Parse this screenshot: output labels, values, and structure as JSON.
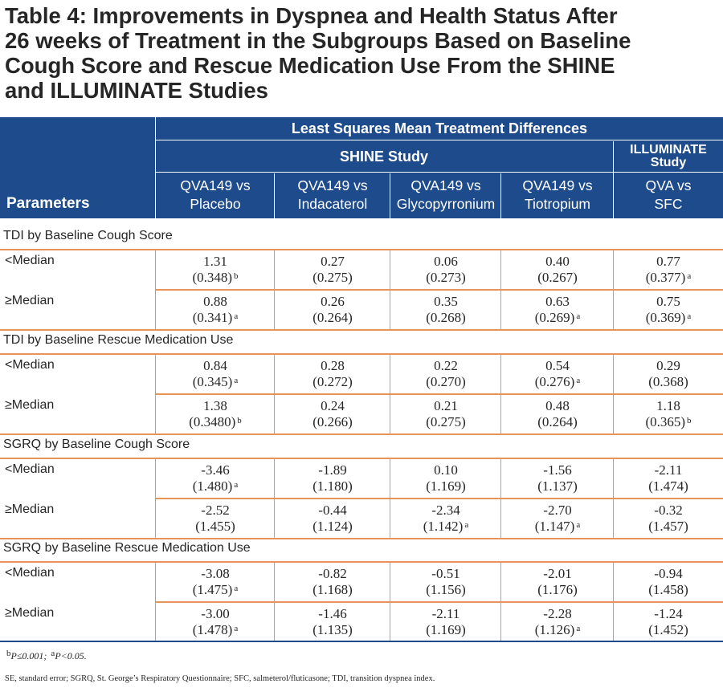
{
  "title_lines": [
    "Table 4: Improvements in Dyspnea and Health Status After",
    "26 weeks of Treatment in the Subgroups Based on Baseline",
    "Cough Score and Rescue Medication Use From the SHINE",
    "and ILLUMINATE Studies"
  ],
  "header": {
    "parameters": "Parameters",
    "lsm": "Least Squares Mean  Treatment Differences",
    "shine": "SHINE Study",
    "illuminate_line1": "ILLUMINATE",
    "illuminate_line2": "Study",
    "columns": [
      {
        "line1": "QVA149 vs",
        "line2": "Placebo"
      },
      {
        "line1": "QVA149 vs",
        "line2": "Indacaterol"
      },
      {
        "line1": "QVA149 vs",
        "line2": "Glycopyrronium"
      },
      {
        "line1": "QVA149 vs",
        "line2": "Tiotropium"
      },
      {
        "line1": "QVA vs",
        "line2": "SFC"
      }
    ]
  },
  "sections": [
    {
      "title": "TDI by Baseline Cough Score",
      "rows": [
        {
          "label": "<Median",
          "cells": [
            {
              "v": "1.31",
              "se": "(0.348)",
              "sup": "b"
            },
            {
              "v": "0.27",
              "se": "(0.275)",
              "sup": ""
            },
            {
              "v": "0.06",
              "se": "(0.273)",
              "sup": ""
            },
            {
              "v": "0.40",
              "se": "(0.267)",
              "sup": ""
            },
            {
              "v": "0.77",
              "se": "(0.377)",
              "sup": "a"
            }
          ]
        },
        {
          "label": "≥Median",
          "cells": [
            {
              "v": "0.88",
              "se": "(0.341)",
              "sup": "a"
            },
            {
              "v": "0.26",
              "se": "(0.264)",
              "sup": ""
            },
            {
              "v": "0.35",
              "se": "(0.268)",
              "sup": ""
            },
            {
              "v": "0.63",
              "se": "(0.269)",
              "sup": "a"
            },
            {
              "v": "0.75",
              "se": "(0.369)",
              "sup": "a"
            }
          ]
        }
      ]
    },
    {
      "title": "TDI by Baseline Rescue Medication Use",
      "rows": [
        {
          "label": "<Median",
          "cells": [
            {
              "v": "0.84",
              "se": "(0.345)",
              "sup": "a"
            },
            {
              "v": "0.28",
              "se": "(0.272)",
              "sup": ""
            },
            {
              "v": "0.22",
              "se": "(0.270)",
              "sup": ""
            },
            {
              "v": "0.54",
              "se": "(0.276)",
              "sup": "a"
            },
            {
              "v": "0.29",
              "se": "(0.368)",
              "sup": ""
            }
          ]
        },
        {
          "label": "≥Median",
          "cells": [
            {
              "v": "1.38",
              "se": "(0.3480)",
              "sup": "b"
            },
            {
              "v": "0.24",
              "se": "(0.266)",
              "sup": ""
            },
            {
              "v": "0.21",
              "se": "(0.275)",
              "sup": ""
            },
            {
              "v": "0.48",
              "se": "(0.264)",
              "sup": ""
            },
            {
              "v": "1.18",
              "se": "(0.365)",
              "sup": "b"
            }
          ]
        }
      ]
    },
    {
      "title": "SGRQ by Baseline Cough Score",
      "rows": [
        {
          "label": "<Median",
          "cells": [
            {
              "v": "-3.46",
              "se": "(1.480)",
              "sup": "a"
            },
            {
              "v": "-1.89",
              "se": "(1.180)",
              "sup": ""
            },
            {
              "v": "0.10",
              "se": "(1.169)",
              "sup": ""
            },
            {
              "v": "-1.56",
              "se": "(1.137)",
              "sup": ""
            },
            {
              "v": "-2.11",
              "se": "(1.474)",
              "sup": ""
            }
          ]
        },
        {
          "label": "≥Median",
          "cells": [
            {
              "v": "-2.52",
              "se": "(1.455)",
              "sup": ""
            },
            {
              "v": "-0.44",
              "se": "(1.124)",
              "sup": ""
            },
            {
              "v": "-2.34",
              "se": "(1.142)",
              "sup": "a"
            },
            {
              "v": "-2.70",
              "se": "(1.147)",
              "sup": "a"
            },
            {
              "v": "-0.32",
              "se": "(1.457)",
              "sup": ""
            }
          ]
        }
      ]
    },
    {
      "title": "SGRQ by Baseline Rescue Medication Use",
      "rows": [
        {
          "label": "<Median",
          "cells": [
            {
              "v": "-3.08",
              "se": "(1.475)",
              "sup": "a"
            },
            {
              "v": "-0.82",
              "se": "(1.168)",
              "sup": ""
            },
            {
              "v": "-0.51",
              "se": "(1.156)",
              "sup": ""
            },
            {
              "v": "-2.01",
              "se": "(1.176)",
              "sup": ""
            },
            {
              "v": "-0.94",
              "se": "(1.458)",
              "sup": ""
            }
          ]
        },
        {
          "label": "≥Median",
          "cells": [
            {
              "v": "-3.00",
              "se": "(1.478)",
              "sup": "a"
            },
            {
              "v": "-1.46",
              "se": "(1.135)",
              "sup": ""
            },
            {
              "v": "-2.11",
              "se": "(1.169)",
              "sup": ""
            },
            {
              "v": "-2.28",
              "se": "(1.126)",
              "sup": "a"
            },
            {
              "v": "-1.24",
              "se": "(1.452)",
              "sup": ""
            }
          ]
        }
      ]
    }
  ],
  "footnotes": {
    "sig_b_mark": "b",
    "sig_b_text": "P≤0.001; ",
    "sig_a_mark": "a",
    "sig_a_text": "P<0.05.",
    "abbreviations": "SE, standard error; SGRQ, St. George’s Respiratory Questionnaire; SFC, salmeterol/fluticasone; TDI, transition dyspnea index."
  },
  "colors": {
    "header_bg": "#1e4b8c",
    "row_rule": "#e8935a",
    "text": "#262626"
  }
}
